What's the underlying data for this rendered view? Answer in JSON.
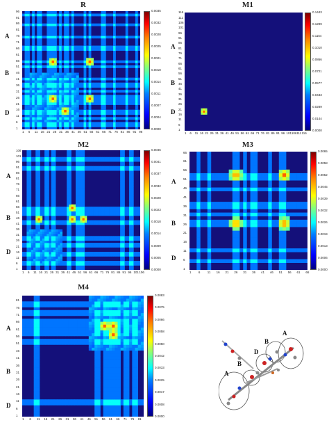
{
  "colors": {
    "background_low": "#14107a",
    "colormap": "jet"
  },
  "chart_data": [
    {
      "type": "heatmap",
      "title": "R",
      "region_labels": [
        "A",
        "B",
        "D"
      ],
      "x_ticks": [
        "1",
        "6",
        "11",
        "16",
        "21",
        "26",
        "31",
        "36",
        "41",
        "46",
        "51",
        "56",
        "61",
        "66",
        "71",
        "76",
        "81",
        "86",
        "91",
        "96"
      ],
      "y_ticks": [
        "1",
        "6",
        "11",
        "16",
        "21",
        "26",
        "31",
        "36",
        "41",
        "46",
        "51",
        "56",
        "61",
        "66",
        "71",
        "76",
        "81",
        "86",
        "91",
        "96"
      ],
      "n": 96,
      "colorbar_ticks": [
        "0.0000",
        "0.0004",
        "0.0007",
        "0.0011",
        "0.0014",
        "0.0018",
        "0.0021",
        "0.0025",
        "0.0028",
        "0.0032",
        "0.0035"
      ],
      "colorbar_range": [
        0,
        0.0035
      ],
      "bands": [
        [
          2,
          5
        ],
        [
          8,
          9
        ],
        [
          12,
          14
        ],
        [
          20,
          22
        ],
        [
          24,
          26
        ],
        [
          30,
          31
        ],
        [
          34,
          36
        ],
        [
          40,
          41
        ],
        [
          50,
          51
        ],
        [
          53,
          55
        ],
        [
          64,
          66
        ],
        [
          74,
          75
        ],
        [
          84,
          85
        ],
        [
          91,
          92
        ]
      ],
      "block": [
        [
          5,
          44
        ],
        [
          5,
          44
        ]
      ],
      "hot": [
        [
          24,
          24
        ],
        [
          54,
          24
        ],
        [
          24,
          54
        ],
        [
          54,
          54
        ],
        [
          34,
          14
        ]
      ]
    },
    {
      "type": "heatmap",
      "title": "M1",
      "region_labels": [
        "A",
        "B",
        "D"
      ],
      "x_ticks": [
        "1",
        "6",
        "11",
        "16",
        "21",
        "26",
        "31",
        "36",
        "41",
        "46",
        "51",
        "56",
        "61",
        "66",
        "71",
        "76",
        "81",
        "86",
        "91",
        "96",
        "101",
        "106",
        "111",
        "116"
      ],
      "y_ticks": [
        "1",
        "6",
        "11",
        "16",
        "21",
        "26",
        "31",
        "36",
        "41",
        "46",
        "51",
        "56",
        "61",
        "66",
        "71",
        "76",
        "81",
        "86",
        "91",
        "96",
        "101",
        "106",
        "111",
        "116"
      ],
      "n": 116,
      "colorbar_ticks": [
        "0.0000",
        "0.0144",
        "0.0289",
        "0.0433",
        "0.0577",
        "0.0721",
        "0.0866",
        "0.1010",
        "0.1154",
        "0.1299",
        "0.1443"
      ],
      "colorbar_range": [
        0,
        0.1443
      ],
      "bands": [],
      "block": [],
      "hot": [
        [
          18,
          18
        ]
      ]
    },
    {
      "type": "heatmap",
      "title": "M2",
      "region_labels": [
        "A",
        "B",
        "D"
      ],
      "x_ticks": [
        "1",
        "6",
        "11",
        "16",
        "21",
        "26",
        "31",
        "36",
        "41",
        "46",
        "51",
        "56",
        "61",
        "66",
        "71",
        "76",
        "81",
        "86",
        "91",
        "96",
        "101",
        "106"
      ],
      "y_ticks": [
        "1",
        "6",
        "11",
        "16",
        "21",
        "26",
        "31",
        "36",
        "41",
        "46",
        "51",
        "56",
        "61",
        "66",
        "71",
        "76",
        "81",
        "86",
        "91",
        "96",
        "101",
        "106"
      ],
      "n": 106,
      "colorbar_ticks": [
        "0.0000",
        "0.0005",
        "0.0009",
        "0.0014",
        "0.0018",
        "0.0023",
        "0.0028",
        "0.0032",
        "0.0037",
        "0.0041",
        "0.0046"
      ],
      "colorbar_range": [
        0,
        0.0046
      ],
      "bands": [
        [
          4,
          6
        ],
        [
          12,
          14
        ],
        [
          20,
          22
        ],
        [
          26,
          28
        ],
        [
          40,
          42
        ],
        [
          48,
          50
        ],
        [
          52,
          54
        ],
        [
          88,
          90
        ],
        [
          96,
          98
        ]
      ],
      "block": [
        [
          3,
          34
        ],
        [
          3,
          34
        ]
      ],
      "hot": [
        [
          44,
          44
        ],
        [
          54,
          44
        ],
        [
          44,
          54
        ],
        [
          14,
          44
        ]
      ]
    },
    {
      "type": "heatmap",
      "title": "M3",
      "region_labels": [
        "A",
        "B",
        "D"
      ],
      "x_ticks": [
        "1",
        "6",
        "11",
        "16",
        "21",
        "26",
        "31",
        "36",
        "41",
        "46",
        "51",
        "56",
        "61",
        "66"
      ],
      "y_ticks": [
        "1",
        "6",
        "11",
        "16",
        "21",
        "26",
        "31",
        "36",
        "41",
        "46",
        "51",
        "56",
        "61",
        "66"
      ],
      "n": 66,
      "colorbar_ticks": [
        "0.0000",
        "0.0006",
        "0.0013",
        "0.0019",
        "0.0026",
        "0.0032",
        "0.0039",
        "0.0045",
        "0.0052",
        "0.0058",
        "0.0065"
      ],
      "colorbar_range": [
        0,
        0.0065
      ],
      "bands": [
        [
          4,
          5
        ],
        [
          9,
          10
        ],
        [
          24,
          26
        ],
        [
          29,
          30
        ],
        [
          34,
          36
        ],
        [
          44,
          45
        ],
        [
          49,
          50
        ],
        [
          52,
          53
        ]
      ],
      "block": [],
      "hot": [
        [
          25,
          25
        ],
        [
          25,
          52
        ],
        [
          52,
          25
        ],
        [
          52,
          52
        ]
      ]
    },
    {
      "type": "heatmap",
      "title": "M4",
      "region_labels": [
        "A",
        "B",
        "D"
      ],
      "x_ticks": [
        "1",
        "6",
        "11",
        "16",
        "21",
        "26",
        "31",
        "36",
        "41",
        "46",
        "51",
        "56",
        "61",
        "66",
        "71",
        "76",
        "81"
      ],
      "y_ticks": [
        "1",
        "6",
        "11",
        "16",
        "21",
        "26",
        "31",
        "36",
        "41",
        "46",
        "51",
        "56",
        "61",
        "66",
        "71",
        "76",
        "81"
      ],
      "n": 84,
      "colorbar_ticks": [
        "0.0000",
        "0.0008",
        "0.0017",
        "0.0025",
        "0.0033",
        "0.0042",
        "0.0050",
        "0.0058",
        "0.0066",
        "0.0075",
        "0.0083"
      ],
      "colorbar_range": [
        0,
        0.0083
      ],
      "bands": [
        [
          8,
          10
        ],
        [
          50,
          52
        ],
        [
          56,
          58
        ],
        [
          60,
          62
        ],
        [
          64,
          66
        ],
        [
          70,
          72
        ],
        [
          76,
          78
        ]
      ],
      "block": [
        [
          46,
          84
        ],
        [
          46,
          84
        ]
      ],
      "hot": [
        [
          62,
          62
        ],
        [
          56,
          62
        ],
        [
          62,
          56
        ]
      ]
    }
  ],
  "molecule": {
    "labels": [
      "A",
      "B",
      "D",
      "B",
      "A"
    ]
  }
}
